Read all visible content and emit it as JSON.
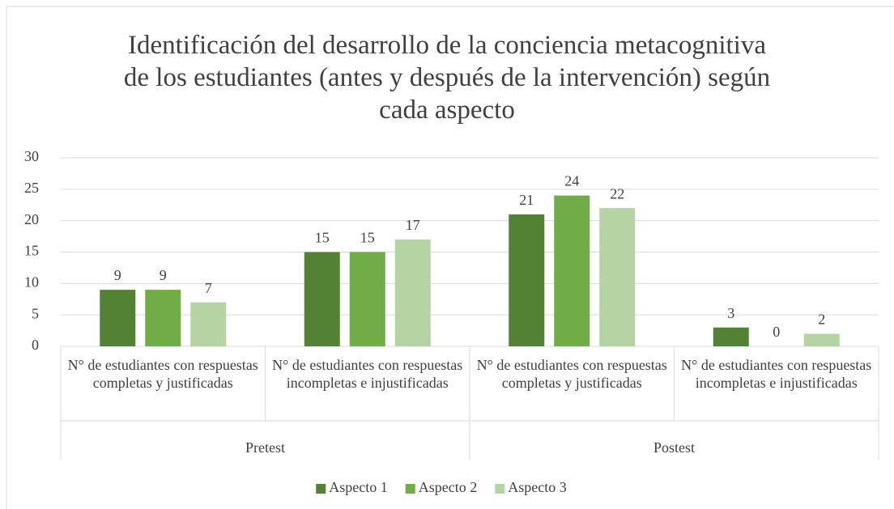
{
  "chart_data": {
    "type": "bar",
    "title": "Identificación del desarrollo de la conciencia metacognitiva de los estudiantes (antes y después de la intervención) según cada aspecto",
    "categories": [
      "N° de estudiantes con respuestas completas y justificadas",
      "N° de estudiantes con respuestas incompletas e injustificadas",
      "N° de estudiantes con respuestas completas y justificadas",
      "N° de estudiantes con respuestas incompletas e injustificadas"
    ],
    "groups": [
      "Pretest",
      "Postest"
    ],
    "series": [
      {
        "name": "Aspecto 1",
        "color": "#548235",
        "values": [
          9,
          15,
          21,
          3
        ]
      },
      {
        "name": "Aspecto 2",
        "color": "#70ad47",
        "values": [
          9,
          15,
          24,
          0
        ]
      },
      {
        "name": "Aspecto 3",
        "color": "#b5d3a3",
        "values": [
          7,
          17,
          22,
          2
        ]
      }
    ],
    "ylim": [
      0,
      30
    ],
    "yticks": [
      0,
      5,
      10,
      15,
      20,
      25,
      30
    ],
    "grid": true,
    "legend": "bottom"
  }
}
